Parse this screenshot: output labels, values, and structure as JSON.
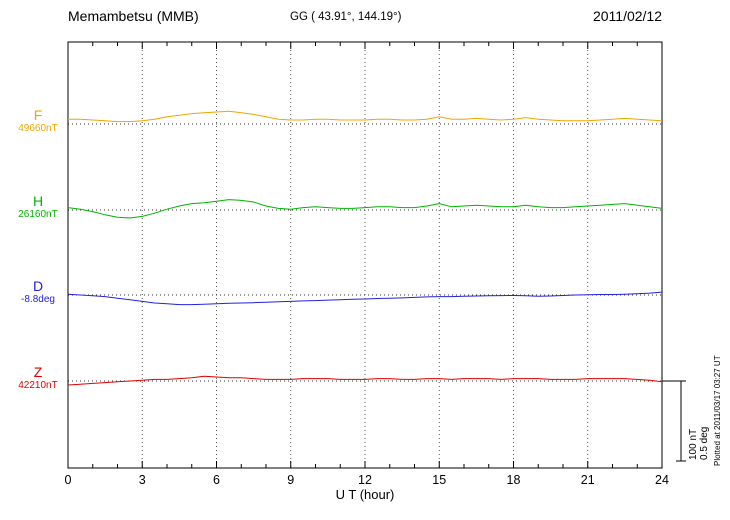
{
  "header": {
    "station": "Memambetsu (MMB)",
    "coords": "GG ( 43.91°, 144.19°)",
    "date": "2011/02/12"
  },
  "footer": {
    "plotted_at": "Plotted at 2011/03/17 03:27 UT"
  },
  "scale_bar": {
    "nt_label": "100 nT",
    "deg_label": "0.5 deg"
  },
  "x_axis": {
    "label": "U T (hour)",
    "major_ticks": [
      0,
      3,
      6,
      9,
      12,
      15,
      18,
      21,
      24
    ],
    "minor_step": 1
  },
  "chart_data": {
    "type": "line",
    "title": "Memambetsu (MMB) magnetogram 2011/02/12",
    "xlabel": "U T (hour)",
    "x": {
      "unit": "hour UT",
      "start": 0,
      "end": 24,
      "step": 0.5
    },
    "scale": {
      "nT_per_bar": 100,
      "deg_per_bar": 0.5
    },
    "grid": "dotted vertical lines every 3 hours, dotted baseline per trace",
    "series": [
      {
        "name": "F",
        "unit": "nT",
        "color": "#f0a500",
        "baseline": 49660,
        "baseline_label": "49660nT",
        "offsets": [
          6,
          6,
          5,
          4,
          3,
          3,
          4,
          6,
          9,
          11,
          13,
          14,
          15,
          16,
          14,
          12,
          9,
          6,
          5,
          5,
          6,
          6,
          5,
          5,
          5,
          6,
          6,
          5,
          5,
          6,
          9,
          6,
          6,
          7,
          6,
          5,
          6,
          8,
          6,
          5,
          4,
          4,
          4,
          5,
          6,
          7,
          6,
          5,
          4
        ]
      },
      {
        "name": "H",
        "unit": "nT",
        "color": "#00b400",
        "baseline": 26160,
        "baseline_label": "26160nT",
        "offsets": [
          3,
          1,
          -2,
          -6,
          -9,
          -10,
          -8,
          -4,
          1,
          5,
          8,
          9,
          11,
          13,
          12,
          10,
          5,
          2,
          1,
          3,
          4,
          3,
          2,
          2,
          3,
          4,
          4,
          3,
          3,
          5,
          8,
          4,
          5,
          6,
          5,
          4,
          4,
          6,
          4,
          3,
          3,
          4,
          5,
          6,
          7,
          8,
          6,
          4,
          2
        ]
      },
      {
        "name": "D",
        "unit": "deg",
        "color": "#2222dd",
        "baseline": -8.8,
        "baseline_label": "-8.8deg",
        "offsets": [
          0.005,
          0.0,
          -0.005,
          -0.01,
          -0.02,
          -0.03,
          -0.04,
          -0.05,
          -0.055,
          -0.06,
          -0.06,
          -0.058,
          -0.055,
          -0.052,
          -0.05,
          -0.048,
          -0.045,
          -0.042,
          -0.04,
          -0.037,
          -0.035,
          -0.032,
          -0.03,
          -0.027,
          -0.025,
          -0.022,
          -0.02,
          -0.018,
          -0.015,
          -0.012,
          -0.01,
          -0.01,
          -0.008,
          -0.006,
          -0.005,
          -0.004,
          -0.003,
          -0.005,
          -0.008,
          -0.006,
          -0.003,
          0.0,
          0.002,
          0.003,
          0.003,
          0.005,
          0.008,
          0.012,
          0.018
        ]
      },
      {
        "name": "Z",
        "unit": "nT",
        "color": "#e00000",
        "baseline": 42210,
        "baseline_label": "42210nT",
        "offsets": [
          -5,
          -4,
          -3,
          -2,
          -1,
          0,
          1,
          2,
          2,
          3,
          4,
          6,
          5,
          4,
          4,
          3,
          2,
          2,
          2,
          3,
          3,
          3,
          2,
          2,
          2,
          3,
          3,
          2,
          2,
          3,
          3,
          2,
          3,
          3,
          3,
          2,
          3,
          3,
          3,
          2,
          2,
          2,
          3,
          3,
          3,
          3,
          2,
          1,
          -1
        ]
      }
    ]
  }
}
